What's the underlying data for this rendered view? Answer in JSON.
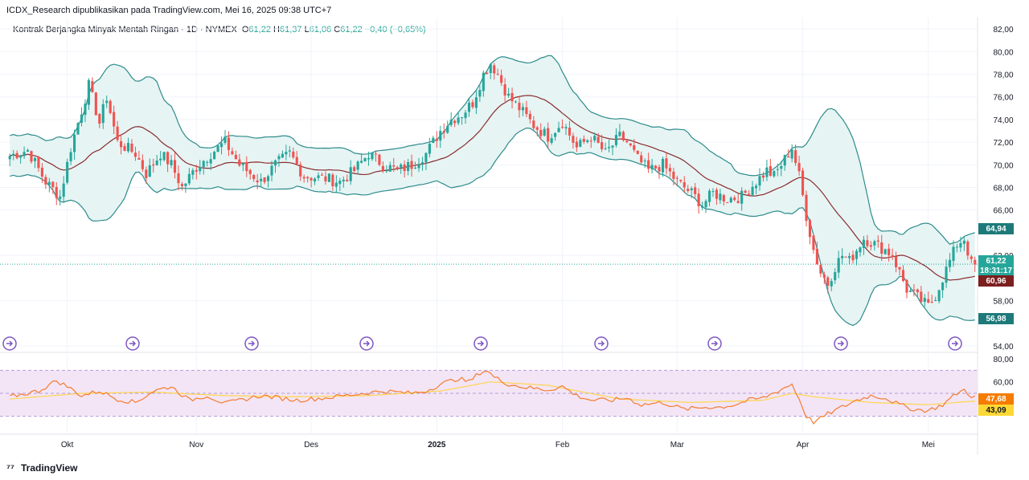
{
  "publisher_line": "ICDX_Research dipublikasikan pada TradingView.com, Mei 16, 2025 09:38 UTC+7",
  "footer": {
    "brand": "TradingView",
    "logo_icon": "tradingview-logo-icon"
  },
  "colors": {
    "up": "#26a69a",
    "down": "#ef5350",
    "band": "#2e8b8b",
    "band_fill": "#e6f4f4",
    "basis": "#8b2c2c",
    "rsi": "#f57c31",
    "rsi_ma": "#ffd54f",
    "rsi_zone": "#f3e5f5",
    "marker": "#7e57c2",
    "price_line": "#26a69a"
  },
  "legend": {
    "symbol": "Kontrak Berjangka Minyak Mentah Ringan · 1D · NYMEX",
    "o_label": "O",
    "o": "61,22",
    "h_label": "H",
    "h": "61,37",
    "l_label": "L",
    "l": "61,06",
    "c_label": "C",
    "c": "61,22",
    "change": "−0,40 (−0,65%)"
  },
  "chart_data": {
    "type": "candlestick",
    "x_labels": [
      "Okt",
      "Nov",
      "Des",
      "2025",
      "Feb",
      "Mar",
      "Apr",
      "Mei"
    ],
    "price_axis": {
      "ticks": [
        "82,00",
        "80,00",
        "78,00",
        "76,00",
        "74,00",
        "72,00",
        "70,00",
        "68,00",
        "66,00",
        "62,00",
        "58,00",
        "54,00"
      ],
      "range": [
        53.5,
        83
      ]
    },
    "rsi_axis": {
      "ticks": [
        "80,00",
        "60,00"
      ],
      "range": [
        15,
        85
      ],
      "band": [
        30,
        70
      ]
    },
    "price_labels": {
      "upper_band": "64,94",
      "last_price": "61,22",
      "countdown": "18:31:17",
      "basis": "60,96",
      "lower_band": "56,98",
      "rsi": "47,68",
      "rsi_ma": "43,09"
    },
    "last_price": 61.22,
    "event_markers": [
      "calendar-event-icon",
      "calendar-event-icon",
      "calendar-event-icon",
      "calendar-event-icon",
      "calendar-event-icon",
      "calendar-event-icon",
      "calendar-event-icon",
      "calendar-event-icon",
      "calendar-event-icon"
    ],
    "anchors": [
      [
        0,
        70.8
      ],
      [
        5,
        71.3
      ],
      [
        10,
        68.5
      ],
      [
        14,
        67.2
      ],
      [
        17,
        71.5
      ],
      [
        20,
        74.8
      ],
      [
        22,
        77.0
      ],
      [
        25,
        73.7
      ],
      [
        27,
        76.0
      ],
      [
        30,
        72.0
      ],
      [
        35,
        71.0
      ],
      [
        38,
        69.2
      ],
      [
        42,
        71.0
      ],
      [
        45,
        70.0
      ],
      [
        48,
        68.0
      ],
      [
        52,
        69.8
      ],
      [
        56,
        71.0
      ],
      [
        60,
        72.0
      ],
      [
        64,
        70.0
      ],
      [
        70,
        68.5
      ],
      [
        74,
        70.0
      ],
      [
        78,
        71.0
      ],
      [
        82,
        69.0
      ],
      [
        88,
        68.8
      ],
      [
        92,
        68.5
      ],
      [
        96,
        69.5
      ],
      [
        100,
        71.0
      ],
      [
        104,
        70.0
      ],
      [
        108,
        69.5
      ],
      [
        112,
        70.0
      ],
      [
        116,
        71.0
      ],
      [
        120,
        73.0
      ],
      [
        123,
        74.0
      ],
      [
        126,
        74.5
      ],
      [
        129,
        75.5
      ],
      [
        132,
        78.0
      ],
      [
        134,
        79.0
      ],
      [
        136,
        78.0
      ],
      [
        139,
        76.0
      ],
      [
        142,
        75.0
      ],
      [
        146,
        73.5
      ],
      [
        150,
        72.5
      ],
      [
        154,
        73.8
      ],
      [
        158,
        71.5
      ],
      [
        162,
        72.5
      ],
      [
        166,
        71.0
      ],
      [
        170,
        72.5
      ],
      [
        172,
        72.0
      ],
      [
        175,
        70.5
      ],
      [
        178,
        69.5
      ],
      [
        182,
        70.0
      ],
      [
        186,
        68.5
      ],
      [
        190,
        67.5
      ],
      [
        193,
        66.5
      ],
      [
        196,
        67.5
      ],
      [
        200,
        67.0
      ],
      [
        204,
        67.2
      ],
      [
        208,
        68.5
      ],
      [
        211,
        69.5
      ],
      [
        213,
        69.0
      ],
      [
        215,
        70.0
      ],
      [
        218,
        71.5
      ],
      [
        220,
        69.0
      ],
      [
        222,
        65.5
      ],
      [
        224,
        62.5
      ],
      [
        226,
        60.5
      ],
      [
        228,
        59.5
      ],
      [
        230,
        61.0
      ],
      [
        232,
        62.0
      ],
      [
        234,
        61.5
      ],
      [
        236,
        62.5
      ],
      [
        238,
        63.5
      ],
      [
        241,
        63.0
      ],
      [
        244,
        62.5
      ],
      [
        246,
        62.0
      ],
      [
        248,
        60.5
      ],
      [
        250,
        59.0
      ],
      [
        252,
        58.5
      ],
      [
        254,
        58.0
      ],
      [
        256,
        57.5
      ],
      [
        258,
        58.5
      ],
      [
        260,
        60.0
      ],
      [
        262,
        61.5
      ],
      [
        264,
        63.0
      ],
      [
        266,
        63.5
      ],
      [
        268,
        61.22
      ]
    ],
    "rsi_anchors": [
      [
        0,
        47
      ],
      [
        8,
        52
      ],
      [
        13,
        61
      ],
      [
        16,
        56
      ],
      [
        20,
        48
      ],
      [
        25,
        52
      ],
      [
        30,
        45
      ],
      [
        35,
        42
      ],
      [
        40,
        52
      ],
      [
        45,
        56
      ],
      [
        50,
        44
      ],
      [
        55,
        48
      ],
      [
        60,
        41
      ],
      [
        70,
        48
      ],
      [
        80,
        44
      ],
      [
        88,
        46
      ],
      [
        96,
        49
      ],
      [
        104,
        52
      ],
      [
        112,
        50
      ],
      [
        116,
        52
      ],
      [
        120,
        58
      ],
      [
        125,
        63
      ],
      [
        128,
        60
      ],
      [
        131,
        68
      ],
      [
        133,
        70
      ],
      [
        135,
        64
      ],
      [
        139,
        58
      ],
      [
        144,
        55
      ],
      [
        150,
        53
      ],
      [
        154,
        56
      ],
      [
        158,
        48
      ],
      [
        162,
        44
      ],
      [
        168,
        44
      ],
      [
        172,
        46
      ],
      [
        176,
        40
      ],
      [
        182,
        42
      ],
      [
        188,
        36
      ],
      [
        194,
        38
      ],
      [
        198,
        38
      ],
      [
        202,
        40
      ],
      [
        206,
        44
      ],
      [
        210,
        46
      ],
      [
        214,
        52
      ],
      [
        218,
        58
      ],
      [
        220,
        45
      ],
      [
        222,
        30
      ],
      [
        224,
        25
      ],
      [
        226,
        28
      ],
      [
        228,
        32
      ],
      [
        232,
        38
      ],
      [
        236,
        44
      ],
      [
        240,
        48
      ],
      [
        244,
        46
      ],
      [
        248,
        40
      ],
      [
        252,
        36
      ],
      [
        256,
        35
      ],
      [
        260,
        40
      ],
      [
        264,
        50
      ],
      [
        266,
        53
      ],
      [
        268,
        47.68
      ]
    ],
    "rsi_ma_anchors": [
      [
        0,
        45
      ],
      [
        20,
        50
      ],
      [
        40,
        51
      ],
      [
        60,
        48
      ],
      [
        80,
        47
      ],
      [
        100,
        48
      ],
      [
        120,
        52
      ],
      [
        134,
        60
      ],
      [
        150,
        57
      ],
      [
        170,
        45
      ],
      [
        190,
        42
      ],
      [
        210,
        44
      ],
      [
        218,
        50
      ],
      [
        224,
        47
      ],
      [
        240,
        42
      ],
      [
        256,
        40
      ],
      [
        268,
        43.09
      ]
    ]
  }
}
